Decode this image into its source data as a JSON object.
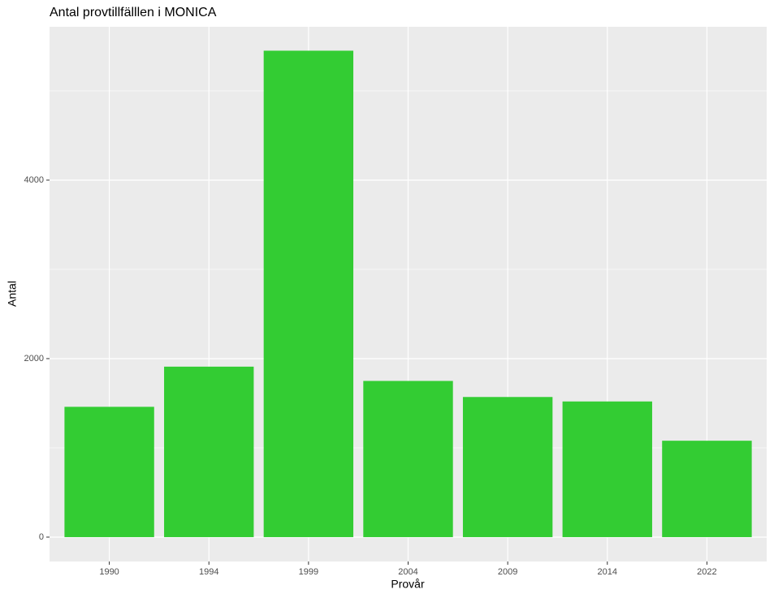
{
  "chart_data": {
    "type": "bar",
    "title": "Antal provtillfälllen i MONICA",
    "x_label": "Provår",
    "y_label": "Antal",
    "categories": [
      "1990",
      "1994",
      "1999",
      "2004",
      "2009",
      "2014",
      "2022"
    ],
    "values": [
      1460,
      1910,
      5450,
      1750,
      1570,
      1520,
      1080
    ],
    "color": "#33cc33",
    "ylim": [
      -273,
      5718
    ],
    "yticks": [
      0,
      2000,
      4000
    ],
    "minor_yticks": [
      1000,
      3000,
      5000
    ],
    "grid": true,
    "panel_color": "#ebebeb"
  }
}
